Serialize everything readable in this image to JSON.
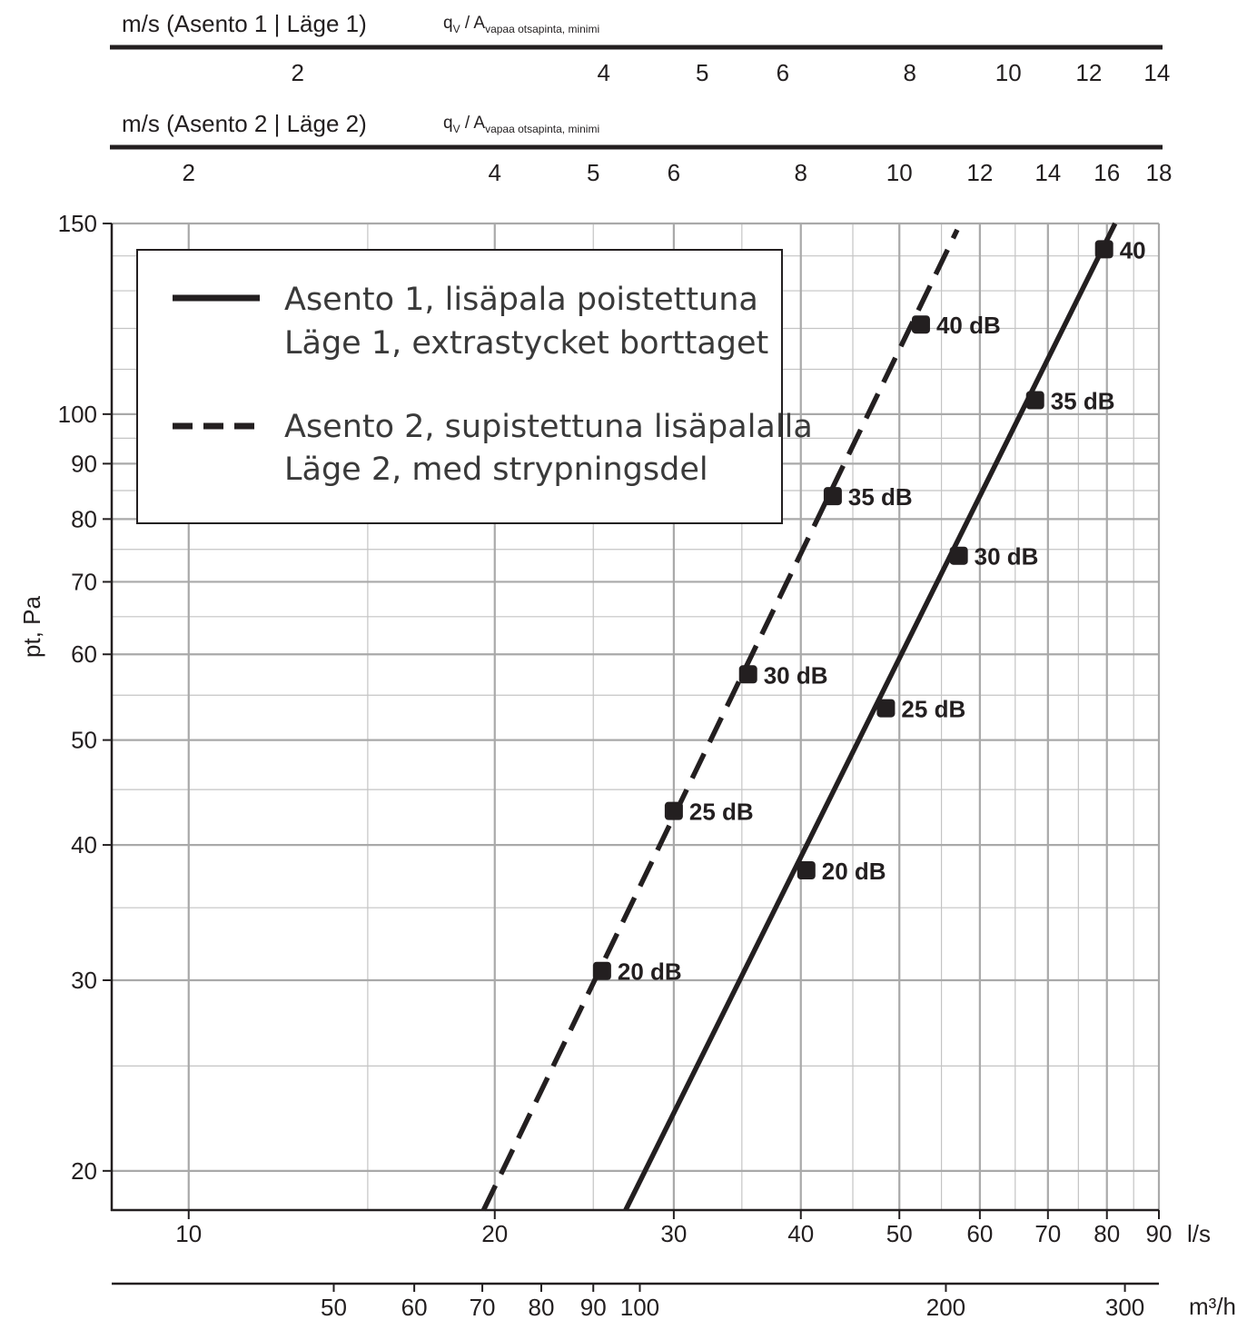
{
  "chart_data": {
    "type": "line",
    "x_scale": "log",
    "y_scale": "log",
    "xlabel": "l/s",
    "xlabel_secondary": "m³/h",
    "ylabel": "pt, Pa",
    "xlim": [
      8.4,
      90
    ],
    "ylim": [
      18.4,
      150
    ],
    "x_ticks": [
      10,
      20,
      30,
      40,
      50,
      60,
      70,
      80,
      90
    ],
    "x_tick_labels": [
      "10",
      "20",
      "30",
      "40",
      "50",
      "60",
      "70",
      "80",
      "90"
    ],
    "x_minor_ticks": [
      15,
      25,
      35,
      45,
      55,
      65,
      75,
      85
    ],
    "m3h_ticks": [
      50,
      60,
      70,
      80,
      90,
      100,
      200,
      300
    ],
    "m3h_tick_labels": [
      "50",
      "60",
      "70",
      "80",
      "90",
      "100",
      "200",
      "300"
    ],
    "y_ticks": [
      20,
      30,
      40,
      50,
      60,
      70,
      80,
      90,
      100,
      150
    ],
    "y_tick_labels": [
      "20",
      "30",
      "40",
      "50",
      "60",
      "70",
      "80",
      "90",
      "100",
      "150"
    ],
    "y_minor_ticks": [
      25,
      35,
      45,
      55,
      65,
      75,
      85,
      95,
      110,
      120,
      130,
      140
    ],
    "grid": true,
    "legend_position": "top-left",
    "velocity_axes": [
      {
        "title": "m/s (Asento 1 | Läge 1)",
        "formula_q": "q",
        "formula_q_sub": "V",
        "formula_sep": " / A",
        "formula_sub": "vapaa otsapinta, minimi",
        "ticks": [
          2,
          4,
          5,
          6,
          8,
          10,
          12,
          14
        ],
        "tick_labels": [
          "2",
          "4",
          "5",
          "6",
          "8",
          "10",
          "12",
          "14"
        ],
        "l_per_s_per_unit": 6.4
      },
      {
        "title": "m/s (Asento 2 | Läge 2)",
        "formula_q": "q",
        "formula_q_sub": "V",
        "formula_sep": " / A",
        "formula_sub": "vapaa otsapinta, minimi",
        "ticks": [
          2,
          4,
          5,
          6,
          8,
          10,
          12,
          14,
          16,
          18
        ],
        "tick_labels": [
          "2",
          "4",
          "5",
          "6",
          "8",
          "10",
          "12",
          "14",
          "16",
          "18"
        ],
        "l_per_s_per_unit": 5.0
      }
    ],
    "series": [
      {
        "legend": [
          "Asento 1, lisäpala poistettuna",
          "Läge 1, extrastycket borttaget"
        ],
        "style": "solid",
        "x": [
          26.9,
          81.5
        ],
        "y": [
          18.4,
          150
        ],
        "markers": [
          {
            "x": 40.5,
            "y": 37.9,
            "label": "20 dB"
          },
          {
            "x": 48.5,
            "y": 53.5,
            "label": "25 dB"
          },
          {
            "x": 57.2,
            "y": 74.0,
            "label": "30 dB"
          },
          {
            "x": 68.0,
            "y": 103.0,
            "label": "35 dB"
          },
          {
            "x": 79.5,
            "y": 142.0,
            "label": "40"
          }
        ]
      },
      {
        "legend": [
          "Asento 2, supistettuna lisäpalalla",
          "Läge 2, med strypningsdel"
        ],
        "style": "dashed",
        "x": [
          19.5,
          57.0
        ],
        "y": [
          18.4,
          148.0
        ],
        "markers": [
          {
            "x": 25.5,
            "y": 30.6,
            "label": "20 dB"
          },
          {
            "x": 30.0,
            "y": 43.0,
            "label": "25 dB"
          },
          {
            "x": 35.5,
            "y": 57.5,
            "label": "30 dB"
          },
          {
            "x": 43.0,
            "y": 84.0,
            "label": "35 dB"
          },
          {
            "x": 52.5,
            "y": 121.0,
            "label": "40 dB"
          }
        ]
      }
    ]
  }
}
